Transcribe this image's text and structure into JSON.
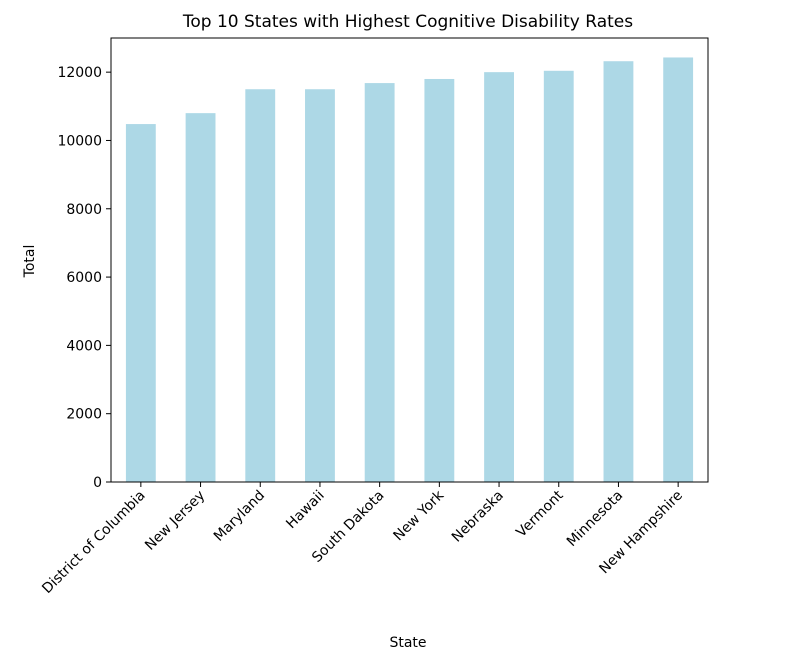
{
  "chart_data": {
    "type": "bar",
    "title": "Top 10 States with Highest Cognitive Disability Rates",
    "xlabel": "State",
    "ylabel": "Total",
    "categories": [
      "District of Columbia",
      "New Jersey",
      "Maryland",
      "Hawaii",
      "South Dakota",
      "New York",
      "Nebraska",
      "Vermont",
      "Minnesota",
      "New Hampshire"
    ],
    "values": [
      10480,
      10800,
      11500,
      11500,
      11680,
      11800,
      12000,
      12040,
      12320,
      12430
    ],
    "ylim": [
      0,
      13000
    ],
    "yticks": [
      0,
      2000,
      4000,
      6000,
      8000,
      10000,
      12000
    ],
    "bar_color": "#add8e6",
    "grid": false,
    "legend": "none"
  }
}
